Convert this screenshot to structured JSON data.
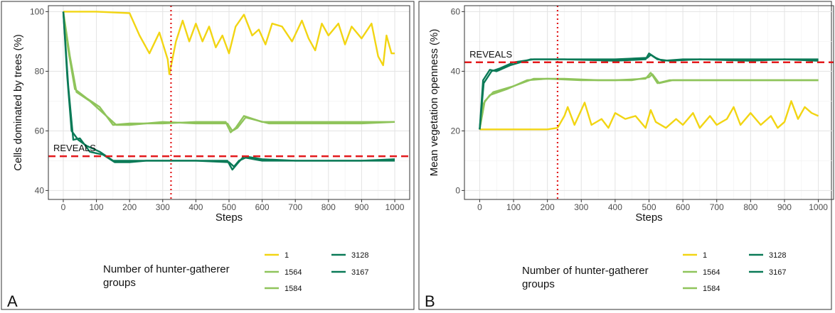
{
  "chart_data": [
    {
      "panel_label": "A",
      "type": "line",
      "xlabel": "Steps",
      "ylabel": "Cells dominated by trees (%)",
      "xlim": [
        -45,
        1045
      ],
      "ylim": [
        37,
        102
      ],
      "xticks": [
        "0",
        "100",
        "200",
        "300",
        "400",
        "500",
        "600",
        "700",
        "800",
        "900",
        "1000"
      ],
      "yticks": [
        "40",
        "60",
        "80",
        "100"
      ],
      "grid": true,
      "reference_line": {
        "label": "REVEALS",
        "y": 51.5,
        "color": "#e31a1c"
      },
      "vertical_marker": {
        "x": 325,
        "color": "#e31a1c"
      },
      "series": [
        {
          "name": "1",
          "color": "#f2d513",
          "points": [
            [
              0,
              100
            ],
            [
              100,
              100
            ],
            [
              200,
              99.5
            ],
            [
              230,
              92
            ],
            [
              260,
              86
            ],
            [
              290,
              93
            ],
            [
              315,
              84
            ],
            [
              320,
              79
            ],
            [
              340,
              90
            ],
            [
              360,
              97
            ],
            [
              380,
              90
            ],
            [
              400,
              96
            ],
            [
              420,
              90
            ],
            [
              440,
              95
            ],
            [
              460,
              88
            ],
            [
              480,
              92
            ],
            [
              500,
              86
            ],
            [
              520,
              95
            ],
            [
              545,
              99
            ],
            [
              570,
              92
            ],
            [
              590,
              94
            ],
            [
              610,
              89
            ],
            [
              630,
              96
            ],
            [
              660,
              95
            ],
            [
              690,
              90
            ],
            [
              720,
              97
            ],
            [
              740,
              91
            ],
            [
              760,
              87
            ],
            [
              780,
              96
            ],
            [
              800,
              92
            ],
            [
              830,
              96
            ],
            [
              850,
              89
            ],
            [
              870,
              95
            ],
            [
              900,
              91
            ],
            [
              930,
              96
            ],
            [
              950,
              85
            ],
            [
              965,
              82
            ],
            [
              975,
              92
            ],
            [
              990,
              86
            ],
            [
              1000,
              86
            ]
          ]
        },
        {
          "name": "1564",
          "color": "#8fc45b",
          "points": [
            [
              0,
              100
            ],
            [
              15,
              87
            ],
            [
              35,
              74
            ],
            [
              70,
              71
            ],
            [
              110,
              68
            ],
            [
              150,
              62
            ],
            [
              200,
              62.5
            ],
            [
              300,
              62.5
            ],
            [
              400,
              63
            ],
            [
              490,
              63
            ],
            [
              505,
              59.5
            ],
            [
              520,
              61
            ],
            [
              545,
              65
            ],
            [
              600,
              63
            ],
            [
              700,
              63
            ],
            [
              800,
              63
            ],
            [
              900,
              63
            ],
            [
              1000,
              63
            ]
          ]
        },
        {
          "name": "1584",
          "color": "#8fc45b",
          "points": [
            [
              0,
              100
            ],
            [
              20,
              85
            ],
            [
              40,
              73
            ],
            [
              80,
              70
            ],
            [
              120,
              66
            ],
            [
              160,
              62
            ],
            [
              200,
              62
            ],
            [
              300,
              63
            ],
            [
              400,
              62.5
            ],
            [
              495,
              62.5
            ],
            [
              510,
              60
            ],
            [
              525,
              61
            ],
            [
              550,
              64.5
            ],
            [
              620,
              62.5
            ],
            [
              700,
              62.5
            ],
            [
              800,
              62.5
            ],
            [
              900,
              62.5
            ],
            [
              1000,
              63
            ]
          ]
        },
        {
          "name": "3128",
          "color": "#0a7a57",
          "points": [
            [
              0,
              100
            ],
            [
              15,
              75
            ],
            [
              30,
              57
            ],
            [
              50,
              57.5
            ],
            [
              80,
              53
            ],
            [
              120,
              52
            ],
            [
              155,
              49.5
            ],
            [
              200,
              49.5
            ],
            [
              250,
              50
            ],
            [
              300,
              50
            ],
            [
              400,
              50
            ],
            [
              495,
              50
            ],
            [
              510,
              47
            ],
            [
              525,
              49
            ],
            [
              545,
              51.5
            ],
            [
              600,
              50.5
            ],
            [
              700,
              50
            ],
            [
              800,
              50
            ],
            [
              900,
              50
            ],
            [
              1000,
              50
            ]
          ]
        },
        {
          "name": "3167",
          "color": "#0a7a57",
          "points": [
            [
              0,
              100
            ],
            [
              12,
              78
            ],
            [
              25,
              60
            ],
            [
              45,
              57
            ],
            [
              70,
              55
            ],
            [
              110,
              53
            ],
            [
              150,
              50
            ],
            [
              200,
              50
            ],
            [
              300,
              50
            ],
            [
              400,
              50
            ],
            [
              500,
              49.5
            ],
            [
              515,
              48
            ],
            [
              530,
              50
            ],
            [
              550,
              51
            ],
            [
              600,
              50
            ],
            [
              700,
              50
            ],
            [
              800,
              50
            ],
            [
              900,
              50
            ],
            [
              1000,
              50.5
            ]
          ]
        }
      ]
    },
    {
      "panel_label": "B",
      "type": "line",
      "xlabel": "Steps",
      "ylabel": "Mean vegetation openness (%)",
      "xlim": [
        -45,
        1045
      ],
      "ylim": [
        -3,
        62
      ],
      "xticks": [
        "0",
        "100",
        "200",
        "300",
        "400",
        "500",
        "600",
        "700",
        "800",
        "900",
        "1000"
      ],
      "yticks": [
        "0",
        "20",
        "40",
        "60"
      ],
      "grid": true,
      "reference_line": {
        "label": "REVEALS",
        "y": 43,
        "color": "#e31a1c"
      },
      "vertical_marker": {
        "x": 230,
        "color": "#e31a1c"
      },
      "series": [
        {
          "name": "1",
          "color": "#f2d513",
          "points": [
            [
              0,
              20.5
            ],
            [
              100,
              20.5
            ],
            [
              200,
              20.5
            ],
            [
              230,
              21
            ],
            [
              250,
              25
            ],
            [
              260,
              28
            ],
            [
              280,
              22
            ],
            [
              300,
              27
            ],
            [
              310,
              29.5
            ],
            [
              330,
              22
            ],
            [
              360,
              24
            ],
            [
              380,
              21
            ],
            [
              400,
              26
            ],
            [
              430,
              24
            ],
            [
              460,
              25
            ],
            [
              490,
              21
            ],
            [
              505,
              27
            ],
            [
              520,
              23
            ],
            [
              550,
              21
            ],
            [
              580,
              24
            ],
            [
              600,
              22
            ],
            [
              630,
              26
            ],
            [
              650,
              21
            ],
            [
              680,
              25
            ],
            [
              700,
              22
            ],
            [
              730,
              24
            ],
            [
              750,
              28
            ],
            [
              770,
              22
            ],
            [
              800,
              26
            ],
            [
              830,
              22
            ],
            [
              860,
              25
            ],
            [
              880,
              21
            ],
            [
              900,
              23
            ],
            [
              920,
              30
            ],
            [
              940,
              24
            ],
            [
              960,
              28
            ],
            [
              980,
              26
            ],
            [
              1000,
              25
            ]
          ]
        },
        {
          "name": "1564",
          "color": "#8fc45b",
          "points": [
            [
              0,
              20.5
            ],
            [
              10,
              29
            ],
            [
              30,
              32
            ],
            [
              80,
              34
            ],
            [
              140,
              37
            ],
            [
              200,
              37.5
            ],
            [
              300,
              37
            ],
            [
              400,
              37
            ],
            [
              490,
              37.5
            ],
            [
              505,
              39.5
            ],
            [
              525,
              36
            ],
            [
              560,
              37
            ],
            [
              700,
              37
            ],
            [
              800,
              37
            ],
            [
              900,
              37
            ],
            [
              1000,
              37
            ]
          ]
        },
        {
          "name": "1584",
          "color": "#8fc45b",
          "points": [
            [
              0,
              20.5
            ],
            [
              15,
              30
            ],
            [
              40,
              33
            ],
            [
              100,
              35
            ],
            [
              160,
              37.5
            ],
            [
              250,
              37.5
            ],
            [
              350,
              37
            ],
            [
              450,
              37
            ],
            [
              500,
              38
            ],
            [
              510,
              39
            ],
            [
              530,
              36
            ],
            [
              570,
              37
            ],
            [
              700,
              37
            ],
            [
              800,
              37
            ],
            [
              900,
              37
            ],
            [
              1000,
              37
            ]
          ]
        },
        {
          "name": "3128",
          "color": "#0a7a57",
          "points": [
            [
              0,
              20.5
            ],
            [
              10,
              37
            ],
            [
              30,
              40.5
            ],
            [
              50,
              40
            ],
            [
              90,
              42
            ],
            [
              150,
              44
            ],
            [
              250,
              44
            ],
            [
              400,
              43.5
            ],
            [
              490,
              44
            ],
            [
              500,
              46
            ],
            [
              520,
              44.5
            ],
            [
              540,
              43.5
            ],
            [
              600,
              44
            ],
            [
              700,
              44
            ],
            [
              800,
              44
            ],
            [
              900,
              44
            ],
            [
              1000,
              44
            ]
          ]
        },
        {
          "name": "3167",
          "color": "#0a7a57",
          "points": [
            [
              0,
              20.5
            ],
            [
              12,
              36
            ],
            [
              35,
              40
            ],
            [
              60,
              41
            ],
            [
              100,
              43
            ],
            [
              160,
              44
            ],
            [
              250,
              44
            ],
            [
              400,
              44
            ],
            [
              495,
              44.5
            ],
            [
              505,
              45.5
            ],
            [
              525,
              44
            ],
            [
              560,
              43.5
            ],
            [
              650,
              44
            ],
            [
              800,
              43.5
            ],
            [
              900,
              44
            ],
            [
              1000,
              43.5
            ]
          ]
        }
      ]
    }
  ],
  "legend": {
    "title": "Number of hunter-gatherer groups",
    "title_lines": [
      "Number of hunter-gatherer",
      "groups"
    ],
    "entries": [
      {
        "label": "1",
        "color": "#f2d513"
      },
      {
        "label": "1564",
        "color": "#8fc45b"
      },
      {
        "label": "1584",
        "color": "#8fc45b"
      },
      {
        "label": "3128",
        "color": "#0a7a57"
      },
      {
        "label": "3167",
        "color": "#0a7a57"
      }
    ]
  }
}
